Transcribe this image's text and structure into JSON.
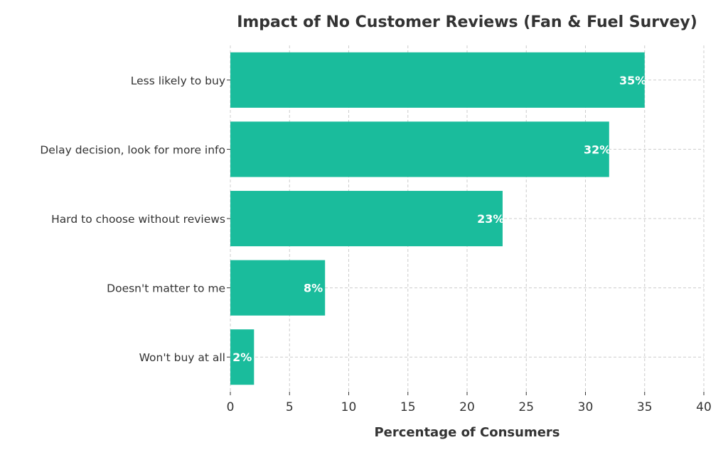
{
  "chart_data": {
    "type": "bar",
    "orientation": "horizontal",
    "title": "Impact of No Customer Reviews (Fan & Fuel Survey)",
    "xlabel": "Percentage of Consumers",
    "ylabel": "",
    "categories": [
      "Less likely to buy",
      "Delay decision, look for more info",
      "Hard to choose without reviews",
      "Doesn't matter to me",
      "Won't buy at all"
    ],
    "values": [
      35,
      32,
      23,
      8,
      2
    ],
    "data_labels": [
      "35%",
      "32%",
      "23%",
      "8%",
      "2%"
    ],
    "xlim": [
      0,
      40
    ],
    "xticks": [
      0,
      5,
      10,
      15,
      20,
      25,
      30,
      35,
      40
    ],
    "grid": true,
    "bar_color": "#1ABC9C",
    "label_color": "#ffffff",
    "text_color": "#333333"
  }
}
